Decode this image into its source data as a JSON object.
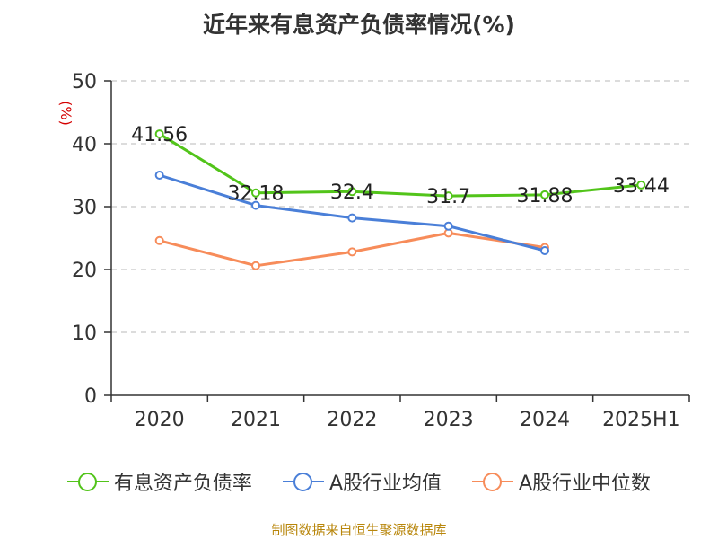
{
  "chart_data": {
    "type": "line",
    "title": "近年来有息资产负债率情况(%)",
    "ylabel": "(%)",
    "categories": [
      "2020",
      "2021",
      "2022",
      "2023",
      "2024",
      "2025H1"
    ],
    "ylim": [
      0,
      50
    ],
    "yticks": [
      0,
      10,
      20,
      30,
      40,
      50
    ],
    "grid": true,
    "legend_position": "bottom",
    "series": [
      {
        "name": "有息资产负债率",
        "color": "#52c41a",
        "values": [
          41.56,
          32.18,
          32.4,
          31.7,
          31.88,
          33.44
        ],
        "labeled": true
      },
      {
        "name": "A股行业均值",
        "color": "#4a7fd8",
        "values": [
          35.0,
          30.2,
          28.2,
          26.9,
          23.0,
          null
        ],
        "labeled": false
      },
      {
        "name": "A股行业中位数",
        "color": "#f78c5a",
        "values": [
          24.6,
          20.6,
          22.8,
          25.8,
          23.5,
          null
        ],
        "labeled": false
      }
    ]
  },
  "footer": {
    "source": "制图数据来自恒生聚源数据库"
  }
}
